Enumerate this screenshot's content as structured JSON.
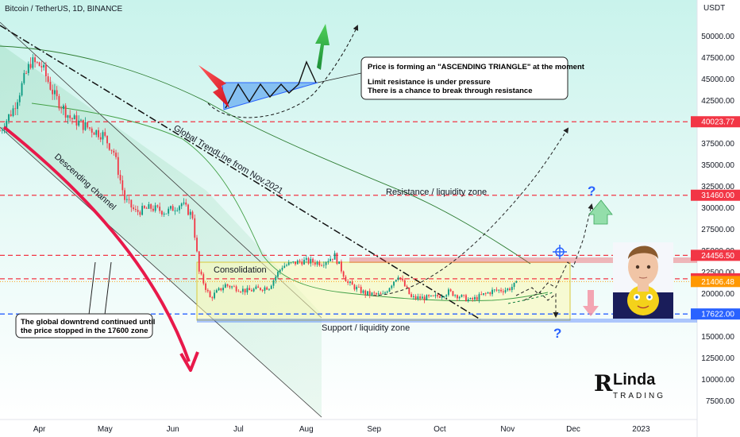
{
  "header": {
    "symbol": "Bitcoin / TetherUS, 1D, BINANCE",
    "quote": "USDT"
  },
  "chart_data": {
    "type": "candlestick",
    "y_ticks": [
      7500,
      10000,
      12500,
      15000,
      17500,
      20000,
      22500,
      25000,
      27500,
      30000,
      32500,
      35000,
      37500,
      40000,
      42500,
      45000,
      47500,
      50000
    ],
    "y_tick_labels": [
      "7500.00",
      "10000.00",
      "12500.00",
      "15000.00",
      "17500.00",
      "20000.00",
      "22500.00",
      "25000.00",
      "27500.00",
      "30000.00",
      "32500.00",
      "35000.00",
      "37500.00",
      "40000.00",
      "42500.00",
      "45000.00",
      "47500.00",
      "50000.00"
    ],
    "ylim": [
      5000,
      54000
    ],
    "x_labels": [
      "Apr",
      "May",
      "Jun",
      "Jul",
      "Aug",
      "Sep",
      "Oct",
      "Nov",
      "Dec",
      "2023"
    ],
    "x_label_dates": [
      "2022-04-01",
      "2022-05-01",
      "2022-06-01",
      "2022-07-01",
      "2022-08-01",
      "2022-09-01",
      "2022-10-01",
      "2022-11-01",
      "2022-12-01",
      "2023-01-01"
    ],
    "x_range": [
      "2022-03-14",
      "2023-01-15"
    ],
    "close_path": [
      [
        "2022-03-14",
        39000
      ],
      [
        "2022-03-20",
        41500
      ],
      [
        "2022-03-28",
        47000
      ],
      [
        "2022-04-02",
        46500
      ],
      [
        "2022-04-08",
        43000
      ],
      [
        "2022-04-15",
        40500
      ],
      [
        "2022-04-22",
        39500
      ],
      [
        "2022-04-30",
        38500
      ],
      [
        "2022-05-05",
        36500
      ],
      [
        "2022-05-10",
        31000
      ],
      [
        "2022-05-15",
        29500
      ],
      [
        "2022-05-22",
        30000
      ],
      [
        "2022-05-29",
        29500
      ],
      [
        "2022-06-05",
        30500
      ],
      [
        "2022-06-10",
        29000
      ],
      [
        "2022-06-13",
        22500
      ],
      [
        "2022-06-18",
        19500
      ],
      [
        "2022-06-25",
        21000
      ],
      [
        "2022-07-05",
        20300
      ],
      [
        "2022-07-15",
        20800
      ],
      [
        "2022-07-21",
        23200
      ],
      [
        "2022-07-30",
        23800
      ],
      [
        "2022-08-08",
        23600
      ],
      [
        "2022-08-14",
        24400
      ],
      [
        "2022-08-20",
        21200
      ],
      [
        "2022-08-28",
        20000
      ],
      [
        "2022-09-05",
        19800
      ],
      [
        "2022-09-12",
        22200
      ],
      [
        "2022-09-18",
        19500
      ],
      [
        "2022-09-28",
        19500
      ],
      [
        "2022-10-05",
        20200
      ],
      [
        "2022-10-15",
        19200
      ],
      [
        "2022-10-25",
        20300
      ],
      [
        "2022-11-01",
        20500
      ],
      [
        "2022-11-05",
        21100
      ]
    ],
    "levels": [
      {
        "value": 40023.77,
        "label": "40023.77",
        "color": "#f23645"
      },
      {
        "value": 31460.0,
        "label": "31460.00",
        "color": "#f23645"
      },
      {
        "value": 24456.5,
        "label": "24456.50",
        "color": "#f23645"
      },
      {
        "value": 21723.0,
        "label": "21723.00",
        "color": "#f23645"
      },
      {
        "value": 21406.48,
        "label": "21406.48",
        "color": "#ff9800"
      },
      {
        "value": 17622.0,
        "label": "17622.00",
        "color": "#2962ff"
      }
    ],
    "annotations": {
      "pattern_note_title": "Price is forming an \"ASCENDING TRIANGLE\" at the moment",
      "pattern_note_line1": "Limit resistance is under pressure",
      "pattern_note_line2": "There is a chance to break through resistance",
      "downtrend_note_line1": "The global downtrend continued until",
      "downtrend_note_line2": "the price stopped in the 17600 zone",
      "trendline_label": "Global TrendLine from Nov.2021",
      "channel_label": "Descending channel",
      "resistance_label": "Resistance / liquidity zone",
      "support_label": "Support / liquidity zone",
      "consolidation_label": "Consolidation",
      "question_mark": "?"
    },
    "colors": {
      "up": "#089981",
      "down": "#f23645",
      "resistance": "#f23645",
      "support": "#2962ff",
      "price": "#ff9800"
    }
  },
  "logo": {
    "letter": "R",
    "word1": "Linda",
    "word2": "TRADING"
  }
}
